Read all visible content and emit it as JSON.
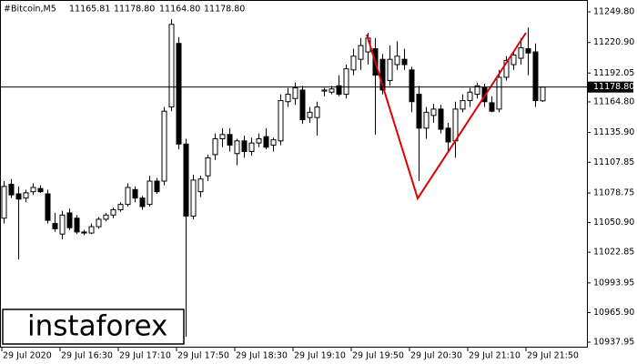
{
  "header": {
    "symbol": "#Bitcoin,M5",
    "values": [
      "11165.81",
      "11178.80",
      "11164.80",
      "11178.80"
    ]
  },
  "watermark": "instaforex",
  "chart_data": {
    "type": "candlestick",
    "categories": [
      "29 Jul 2020",
      null,
      null,
      null,
      null,
      null,
      null,
      null,
      "29 Jul 16:30",
      null,
      null,
      null,
      null,
      null,
      null,
      null,
      "29 Jul 17:10",
      null,
      null,
      null,
      null,
      null,
      null,
      null,
      "29 Jul 17:50",
      null,
      null,
      null,
      null,
      null,
      null,
      null,
      "29 Jul 18:30",
      null,
      null,
      null,
      null,
      null,
      null,
      null,
      "29 Jul 19:10",
      null,
      null,
      null,
      null,
      null,
      null,
      null,
      "29 Jul 19:50",
      null,
      null,
      null,
      null,
      null,
      null,
      null,
      "29 Jul 20:30",
      null,
      null,
      null,
      null,
      null,
      null,
      null,
      "29 Jul 21:10",
      null,
      null,
      null,
      null,
      null,
      null,
      null,
      "29 Jul 21:50",
      null,
      null
    ],
    "open": [
      11055,
      11087,
      11078,
      11074,
      11080,
      11083,
      11078,
      11050,
      11040,
      11060,
      11055,
      11042,
      11041,
      11047,
      11054,
      11058,
      11063,
      11068,
      11082,
      11074,
      11068,
      11090,
      11090,
      11160,
      11220,
      11125,
      11057,
      11080,
      11095,
      11115,
      11130,
      11134,
      11116,
      11128,
      11118,
      11126,
      11132,
      11124,
      11128,
      11165,
      11168,
      11176,
      11150,
      11150,
      11175,
      11174,
      11180,
      11172,
      11195,
      11205,
      11212,
      11215,
      11205,
      11185,
      11200,
      11205,
      11195,
      11172,
      11140,
      11152,
      11158,
      11140,
      11128,
      11158,
      11166,
      11172,
      11178,
      11164,
      11158,
      11188,
      11200,
      11206,
      11215,
      11212,
      11165.81
    ],
    "high": [
      11090,
      11092,
      11085,
      11082,
      11088,
      11086,
      11082,
      11060,
      11062,
      11064,
      11058,
      11044,
      11050,
      11056,
      11060,
      11065,
      11070,
      11088,
      11085,
      11076,
      11095,
      11093,
      11160,
      11243,
      11226,
      11130,
      11096,
      11095,
      11115,
      11135,
      11140,
      11140,
      11130,
      11133,
      11131,
      11135,
      11140,
      11131,
      11172,
      11178,
      11183,
      11180,
      11160,
      11165,
      11178,
      11180,
      11190,
      11200,
      11215,
      11225,
      11230,
      11225,
      11210,
      11218,
      11222,
      11215,
      11198,
      11180,
      11160,
      11163,
      11162,
      11145,
      11165,
      11172,
      11178,
      11183,
      11182,
      11170,
      11195,
      11208,
      11212,
      11225,
      11235,
      11220,
      11178.8
    ],
    "low": [
      11050,
      11074,
      11016,
      11070,
      11077,
      11079,
      11050,
      11042,
      11035,
      11044,
      11040,
      11039,
      11040,
      11045,
      11052,
      11055,
      11061,
      11066,
      11070,
      11063,
      11066,
      11078,
      11086,
      11156,
      11120,
      10943,
      11054,
      11075,
      11090,
      11110,
      11122,
      11118,
      11105,
      11112,
      11114,
      11122,
      11120,
      11118,
      11124,
      11160,
      11162,
      11144,
      11145,
      11133,
      11170,
      11172,
      11170,
      11168,
      11190,
      11195,
      11200,
      11134,
      11172,
      11180,
      11195,
      11195,
      11155,
      11090,
      11130,
      11145,
      11135,
      11118,
      11112,
      11155,
      11160,
      11168,
      11160,
      11155,
      11155,
      11185,
      11195,
      11200,
      11190,
      11160,
      11164.8
    ],
    "close": [
      11085,
      11077,
      11073,
      11079,
      11084,
      11080,
      11053,
      11045,
      11058,
      11046,
      11042,
      11041,
      11047,
      11054,
      11058,
      11063,
      11068,
      11084,
      11074,
      11066,
      11090,
      11080,
      11156,
      11238,
      11125,
      11057,
      11091,
      11092,
      11112,
      11130,
      11134,
      11124,
      11128,
      11118,
      11126,
      11130,
      11122,
      11129,
      11166,
      11172,
      11178,
      11148,
      11155,
      11160,
      11176,
      11177,
      11172,
      11196,
      11208,
      11218,
      11225,
      11190,
      11176,
      11205,
      11208,
      11200,
      11165,
      11140,
      11155,
      11158,
      11139,
      11127,
      11158,
      11166,
      11174,
      11180,
      11165,
      11156,
      11188,
      11204,
      11209,
      11216,
      11211,
      11166,
      11178.8
    ],
    "up_color": "#ffffff",
    "down_color": "#000000",
    "last_price": {
      "value": 11178.8,
      "label": "11178.80"
    },
    "ylim": [
      10932.8,
      11261.0
    ],
    "yticks": [
      {
        "value": 11249.8,
        "label": "11249.80"
      },
      {
        "value": 11220.9,
        "label": "11220.90"
      },
      {
        "value": 11192.05,
        "label": "11192.05"
      },
      {
        "value": 11164.8,
        "label": "11164.80"
      },
      {
        "value": 11135.9,
        "label": "11135.90"
      },
      {
        "value": 11107.85,
        "label": "11107.85"
      },
      {
        "value": 11078.75,
        "label": "11078.75"
      },
      {
        "value": 11050.9,
        "label": "11050.90"
      },
      {
        "value": 11022.85,
        "label": "11022.85"
      },
      {
        "value": 10993.95,
        "label": "10993.95"
      },
      {
        "value": 10965.9,
        "label": "10965.90"
      },
      {
        "value": 10937.95,
        "label": "10937.95"
      }
    ]
  }
}
